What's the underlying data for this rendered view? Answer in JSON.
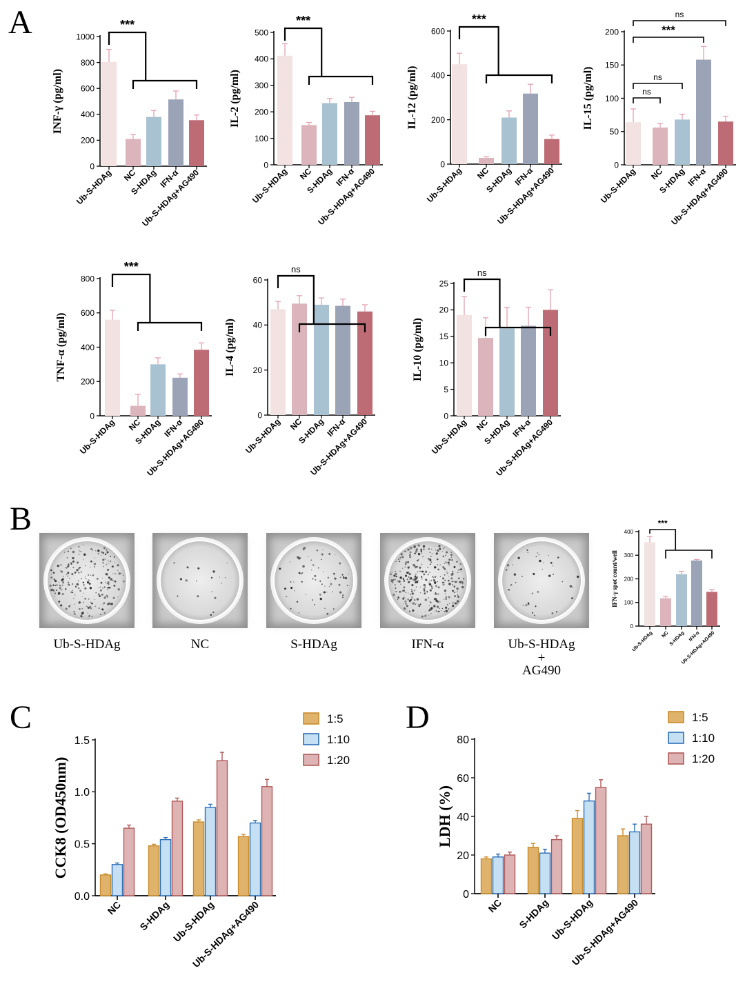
{
  "panel_labels": [
    "A",
    "B",
    "C",
    "D"
  ],
  "colors": {
    "Ub-S-HDAg": "#f2e2e1",
    "NC": "#dcb4bb",
    "S-HDAg": "#a9c2d2",
    "IFN-α": "#9ba3b7",
    "Ub-S-HDAg+AG490": "#bd6b74",
    "1:5": "#dfb36b",
    "1:10": "#c5dff3",
    "1:20": "#ddb3b4",
    "1:5_edge": "#c98c2c",
    "1:10_edge": "#2d6fb7",
    "1:20_edge": "#b15959",
    "err": "#e3a2b0"
  },
  "panel_b": {
    "wells": [
      {
        "label": "Ub-S-HDAg",
        "density": "high"
      },
      {
        "label": "NC",
        "density": "low"
      },
      {
        "label": "S-HDAg",
        "density": "medium"
      },
      {
        "label": "IFN-α",
        "density": "very-high"
      },
      {
        "label": "Ub-S-HDAg",
        "label2": "+",
        "label3": "AG490",
        "density": "medium-low"
      }
    ]
  },
  "chart_data": [
    {
      "id": "inf",
      "type": "bar",
      "panel": "A",
      "ylabel": "INF-γ (pg/ml)",
      "categories": [
        "Ub-S-HDAg",
        "NC",
        "S-HDAg",
        "IFN-α",
        "Ub-S-HDAg+AG490"
      ],
      "values": [
        805,
        210,
        380,
        515,
        355
      ],
      "errors": [
        95,
        35,
        50,
        65,
        40
      ],
      "ylim": [
        0,
        1000
      ],
      "yticks": [
        0,
        200,
        400,
        600,
        800,
        1000
      ],
      "annotations": [
        {
          "type": "bracket-group",
          "label": "***"
        }
      ]
    },
    {
      "id": "il2",
      "type": "bar",
      "panel": "A",
      "ylabel": "IL-2 (pg/ml)",
      "categories": [
        "Ub-S-HDAg",
        "NC",
        "S-HDAg",
        "IFN-α",
        "Ub-S-HDAg+AG490"
      ],
      "values": [
        412,
        150,
        233,
        237,
        187
      ],
      "errors": [
        45,
        10,
        18,
        18,
        15
      ],
      "ylim": [
        0,
        500
      ],
      "yticks": [
        0,
        100,
        200,
        300,
        400,
        500
      ],
      "annotations": [
        {
          "type": "bracket-group",
          "label": "***"
        }
      ]
    },
    {
      "id": "il12",
      "type": "bar",
      "panel": "A",
      "ylabel": "IL-12 (pg/ml)",
      "categories": [
        "Ub-S-HDAg",
        "NC",
        "S-HDAg",
        "IFN-α",
        "Ub-S-HDAg+AG490"
      ],
      "values": [
        450,
        28,
        210,
        318,
        113
      ],
      "errors": [
        50,
        5,
        30,
        42,
        18
      ],
      "ylim": [
        0,
        600
      ],
      "yticks": [
        0,
        200,
        400,
        600
      ],
      "annotations": [
        {
          "type": "bracket-group",
          "label": "***"
        }
      ]
    },
    {
      "id": "il15",
      "type": "bar",
      "panel": "A",
      "ylabel": "IL-15 (pg/ml)",
      "categories": [
        "Ub-S-HDAg",
        "NC",
        "S-HDAg",
        "IFN-α",
        "Ub-S-HDAg+AG490"
      ],
      "values": [
        64,
        56,
        68,
        158,
        65
      ],
      "errors": [
        20,
        6,
        8,
        20,
        8
      ],
      "ylim": [
        0,
        200
      ],
      "yticks": [
        0,
        50,
        100,
        150,
        200
      ],
      "annotations": [
        {
          "type": "pair",
          "from": 0,
          "to": 1,
          "label": "ns"
        },
        {
          "type": "pair",
          "from": 0,
          "to": 2,
          "label": "ns"
        },
        {
          "type": "pair",
          "from": 0,
          "to": 3,
          "label": "***"
        },
        {
          "type": "pair",
          "from": 0,
          "to": 4,
          "label": "ns"
        }
      ]
    },
    {
      "id": "tnf",
      "type": "bar",
      "panel": "A",
      "ylabel": "TNF-α (pg/ml)",
      "categories": [
        "Ub-S-HDAg",
        "NC",
        "S-HDAg",
        "IFN-α",
        "Ub-S-HDAg+AG490"
      ],
      "values": [
        560,
        58,
        300,
        222,
        385
      ],
      "errors": [
        55,
        68,
        38,
        22,
        40
      ],
      "ylim": [
        0,
        800
      ],
      "yticks": [
        0,
        200,
        400,
        600,
        800
      ],
      "annotations": [
        {
          "type": "bracket-group",
          "label": "***"
        }
      ]
    },
    {
      "id": "il4",
      "type": "bar",
      "panel": "A",
      "ylabel": "IL-4 (pg/ml)",
      "categories": [
        "Ub-S-HDAg",
        "NC",
        "S-HDAg",
        "IFN-α",
        "Ub-S-HDAg+AG490"
      ],
      "values": [
        47,
        49.5,
        49,
        48.5,
        46
      ],
      "errors": [
        3.5,
        3.5,
        3,
        3,
        3
      ],
      "ylim": [
        0,
        60
      ],
      "yticks": [
        0,
        20,
        40,
        60
      ],
      "annotations": [
        {
          "type": "bracket-group",
          "label": "ns"
        }
      ]
    },
    {
      "id": "il10",
      "type": "bar",
      "panel": "A",
      "ylabel": "IL-10 (pg/ml)",
      "categories": [
        "Ub-S-HDAg",
        "NC",
        "S-HDAg",
        "IFN-α",
        "Ub-S-HDAg+AG490"
      ],
      "values": [
        19,
        14.7,
        16.5,
        17,
        20
      ],
      "errors": [
        3.5,
        3.8,
        4,
        3.5,
        3.8
      ],
      "ylim": [
        0,
        25
      ],
      "yticks": [
        0,
        5,
        10,
        15,
        20,
        25
      ],
      "annotations": [
        {
          "type": "bracket-group",
          "label": "ns"
        }
      ]
    },
    {
      "id": "elispot",
      "type": "bar",
      "panel": "B",
      "ylabel": "IFN-γ spot count/well",
      "categories": [
        "Ub-S-HDAg",
        "NC",
        "S-HDAg",
        "IFN-α",
        "Ub-S-HDAg+AG490"
      ],
      "values": [
        355,
        118,
        220,
        278,
        145
      ],
      "errors": [
        25,
        8,
        12,
        4,
        10
      ],
      "ylim": [
        0,
        400
      ],
      "yticks": [
        0,
        100,
        200,
        300,
        400
      ],
      "annotations": [
        {
          "type": "bracket-group",
          "label": "***"
        }
      ]
    },
    {
      "id": "cck8",
      "type": "bar",
      "panel": "C",
      "ylabel": "CCK8 (OD450nm)",
      "categories": [
        "NC",
        "S-HDAg",
        "Ub-S-HDAg",
        "Ub-S-HDAg+AG490"
      ],
      "series": [
        {
          "name": "1:5",
          "values": [
            0.2,
            0.48,
            0.71,
            0.57
          ],
          "errors": [
            0.01,
            0.015,
            0.02,
            0.02
          ]
        },
        {
          "name": "1:10",
          "values": [
            0.3,
            0.54,
            0.85,
            0.7
          ],
          "errors": [
            0.015,
            0.02,
            0.03,
            0.025
          ]
        },
        {
          "name": "1:20",
          "values": [
            0.65,
            0.91,
            1.3,
            1.05
          ],
          "errors": [
            0.03,
            0.03,
            0.08,
            0.07
          ]
        }
      ],
      "ylim": [
        0,
        1.5
      ],
      "yticks": [
        "0.0",
        "0.5",
        "1.0",
        "1.5"
      ],
      "legend": [
        "1:5",
        "1:10",
        "1:20"
      ]
    },
    {
      "id": "ldh",
      "type": "bar",
      "panel": "D",
      "ylabel": "LDH (%)",
      "categories": [
        "NC",
        "S-HDAg",
        "Ub-S-HDAg",
        "Ub-S-HDAg+AG490"
      ],
      "series": [
        {
          "name": "1:5",
          "values": [
            18,
            24,
            39,
            30
          ],
          "errors": [
            1,
            2,
            4,
            3.5
          ]
        },
        {
          "name": "1:10",
          "values": [
            19,
            21,
            48,
            32
          ],
          "errors": [
            1.5,
            2,
            4,
            4
          ]
        },
        {
          "name": "1:20",
          "values": [
            20,
            28,
            55,
            36
          ],
          "errors": [
            1.5,
            2,
            4,
            4
          ]
        }
      ],
      "ylim": [
        0,
        80
      ],
      "yticks": [
        0,
        20,
        40,
        60,
        80
      ],
      "legend": [
        "1:5",
        "1:10",
        "1:20"
      ]
    }
  ]
}
